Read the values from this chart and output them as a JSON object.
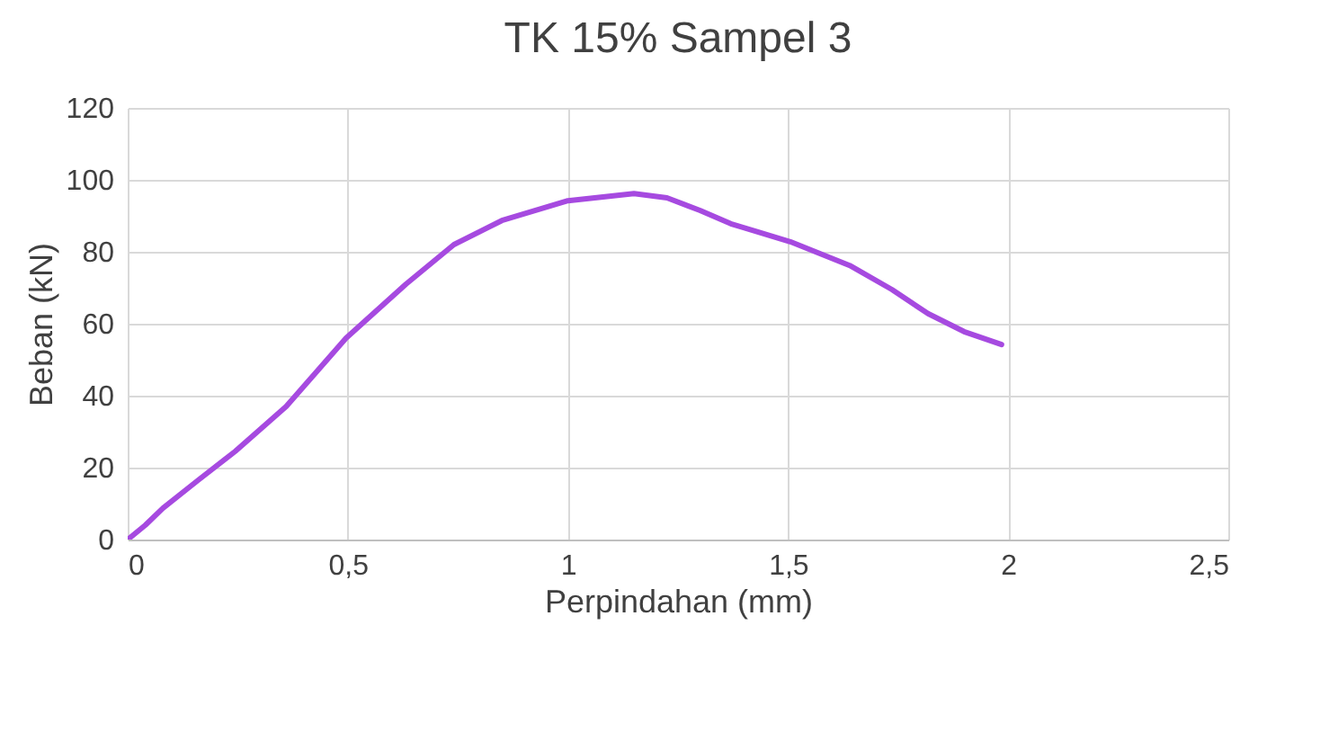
{
  "chart_data": {
    "type": "line",
    "title": "TK 15% Sampel 3",
    "xlabel": "Perpindahan (mm)",
    "ylabel": "Beban (kN)",
    "x": [
      0,
      0.04,
      0.08,
      0.16,
      0.244,
      0.36,
      0.496,
      0.632,
      0.741,
      0.85,
      1.0,
      1.15,
      1.225,
      1.3,
      1.37,
      1.505,
      1.64,
      1.736,
      1.818,
      1.9,
      1.985
    ],
    "series": [
      {
        "color": "#a64ae0",
        "values": [
          0,
          4,
          8.7,
          16.5,
          24.5,
          37,
          56,
          71,
          82,
          88.7,
          94.2,
          96.2,
          95,
          91.5,
          87.8,
          82.8,
          76.2,
          69.5,
          62.8,
          57.8,
          54.2
        ]
      }
    ],
    "xlim": [
      0,
      2.5
    ],
    "xticks": [
      0,
      {
        "value": 0.5,
        "label": "0,5"
      },
      1,
      {
        "value": 1.5,
        "label": "1,5"
      },
      2,
      {
        "value": 2.5,
        "label": "2,5"
      }
    ],
    "ylim": [
      0,
      120
    ],
    "yticks": [
      0,
      20,
      40,
      60,
      80,
      100,
      120
    ],
    "grid": true,
    "marker": "none",
    "line_style": "solid"
  }
}
